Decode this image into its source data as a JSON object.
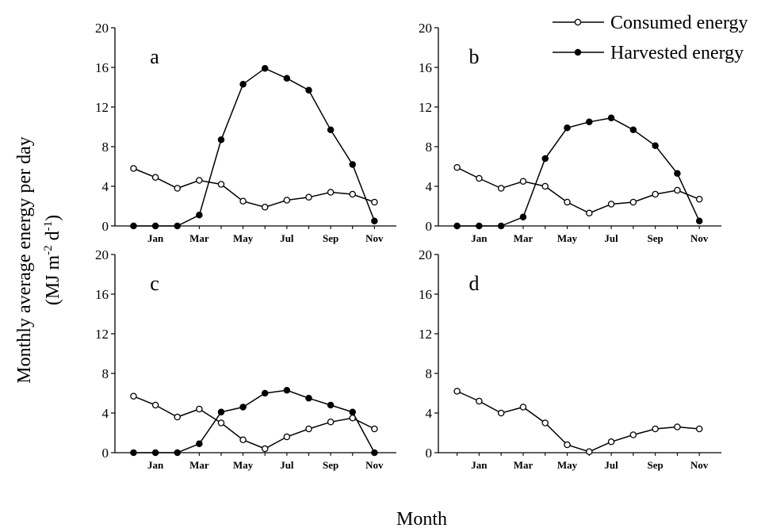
{
  "figure": {
    "ylabel_line1": "Monthly average energy per day",
    "ylabel_line2_prefix": "(MJ m",
    "ylabel_line2_sup1": "-2",
    "ylabel_line2_mid": " d",
    "ylabel_line2_sup2": "-1",
    "ylabel_line2_suffix": ")",
    "xlabel": "Month"
  },
  "legend": {
    "consumed": "Consumed energy",
    "harvested": "Harvested energy"
  },
  "chart_data": [
    {
      "type": "line",
      "panel": "a",
      "x_tick_labels": [
        "Jan",
        "Mar",
        "May",
        "Jul",
        "Sep",
        "Nov"
      ],
      "y_ticks": [
        0,
        4,
        8,
        12,
        16,
        20
      ],
      "ylim": [
        0,
        20
      ],
      "x": [
        0,
        1,
        2,
        3,
        4,
        5,
        6,
        7,
        8,
        9,
        10,
        11
      ],
      "series": [
        {
          "name": "Consumed energy",
          "marker": "open-circle",
          "values": [
            5.8,
            4.9,
            3.8,
            4.6,
            4.2,
            2.5,
            1.9,
            2.6,
            2.9,
            3.4,
            3.2,
            2.4
          ]
        },
        {
          "name": "Harvested energy",
          "marker": "filled-circle",
          "values": [
            0.0,
            0.0,
            0.0,
            1.1,
            8.7,
            14.3,
            15.9,
            14.9,
            13.7,
            9.7,
            6.2,
            0.5
          ]
        }
      ]
    },
    {
      "type": "line",
      "panel": "b",
      "x_tick_labels": [
        "Jan",
        "Mar",
        "May",
        "Jul",
        "Sep",
        "Nov"
      ],
      "y_ticks": [
        0,
        4,
        8,
        12,
        16,
        20
      ],
      "ylim": [
        0,
        20
      ],
      "x": [
        0,
        1,
        2,
        3,
        4,
        5,
        6,
        7,
        8,
        9,
        10,
        11
      ],
      "series": [
        {
          "name": "Consumed energy",
          "marker": "open-circle",
          "values": [
            5.9,
            4.8,
            3.8,
            4.5,
            4.0,
            2.4,
            1.3,
            2.2,
            2.4,
            3.2,
            3.6,
            2.7
          ]
        },
        {
          "name": "Harvested energy",
          "marker": "filled-circle",
          "values": [
            0.0,
            0.0,
            0.0,
            0.9,
            6.8,
            9.9,
            10.5,
            10.9,
            9.7,
            8.1,
            5.3,
            0.5
          ]
        }
      ]
    },
    {
      "type": "line",
      "panel": "c",
      "x_tick_labels": [
        "Jan",
        "Mar",
        "May",
        "Jul",
        "Sep",
        "Nov"
      ],
      "y_ticks": [
        0,
        4,
        8,
        12,
        16,
        20
      ],
      "ylim": [
        0,
        20
      ],
      "x": [
        0,
        1,
        2,
        3,
        4,
        5,
        6,
        7,
        8,
        9,
        10,
        11
      ],
      "series": [
        {
          "name": "Consumed energy",
          "marker": "open-circle",
          "values": [
            5.7,
            4.8,
            3.6,
            4.4,
            3.0,
            1.3,
            0.4,
            1.6,
            2.4,
            3.1,
            3.5,
            2.4
          ]
        },
        {
          "name": "Harvested energy",
          "marker": "filled-circle",
          "values": [
            0.0,
            0.0,
            0.0,
            0.9,
            4.1,
            4.6,
            6.0,
            6.3,
            5.5,
            4.8,
            4.1,
            0.0
          ]
        }
      ]
    },
    {
      "type": "line",
      "panel": "d",
      "x_tick_labels": [
        "Jan",
        "Mar",
        "May",
        "Jul",
        "Sep",
        "Nov"
      ],
      "y_ticks": [
        0,
        4,
        8,
        12,
        16,
        20
      ],
      "ylim": [
        0,
        20
      ],
      "x": [
        0,
        1,
        2,
        3,
        4,
        5,
        6,
        7,
        8,
        9,
        10,
        11
      ],
      "series": [
        {
          "name": "Consumed energy",
          "marker": "open-circle",
          "values": [
            6.2,
            5.2,
            4.0,
            4.6,
            3.0,
            0.8,
            0.1,
            1.1,
            1.8,
            2.4,
            2.6,
            2.4
          ]
        }
      ]
    }
  ]
}
